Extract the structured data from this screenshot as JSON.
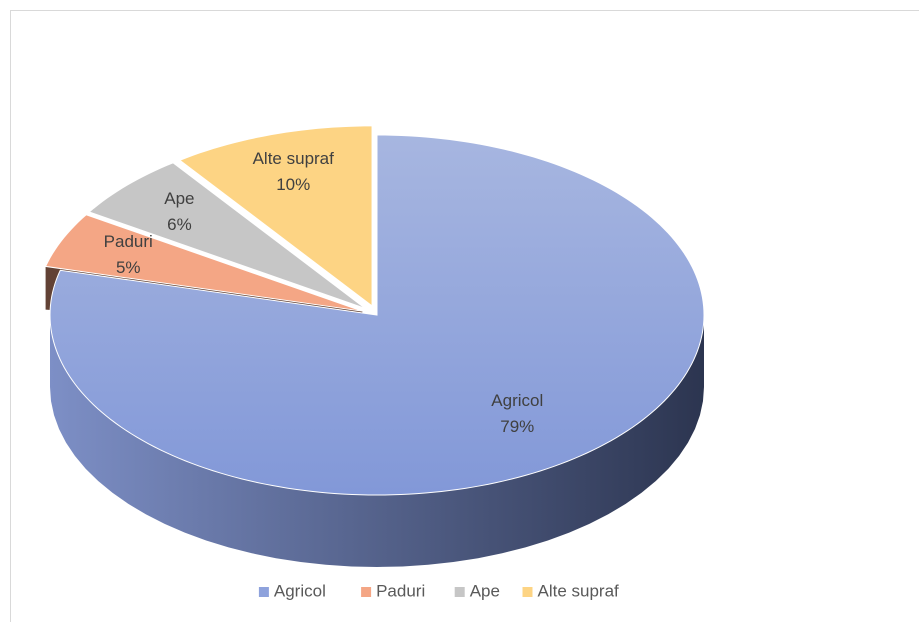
{
  "chart_data": {
    "type": "pie",
    "categories": [
      "Agricol",
      "Paduri",
      "Ape",
      "Alte supraf"
    ],
    "values": [
      79,
      5,
      6,
      10
    ],
    "value_labels": [
      "79%",
      "5%",
      "6%",
      "10%"
    ],
    "colors": [
      "#8ea2dc",
      "#f4a685",
      "#c6c6c6",
      "#fdd484"
    ],
    "legend": "bottom"
  }
}
